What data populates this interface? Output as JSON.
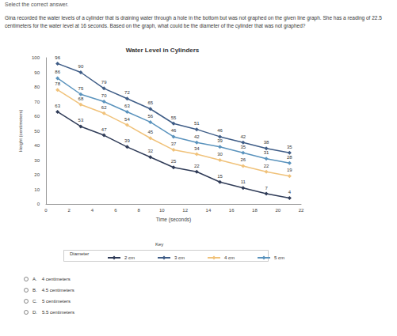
{
  "page": {
    "instruction": "Select the correct answer.",
    "question": "Gina recorded the water levels of a cylinder that is draining water through a hole in the bottom but was not graphed on the given line graph. She has a reading of 22.5 centimeters for the water level at 16 seconds. Based on the graph, what could be the diameter of the cylinder that was not graphed?",
    "options": [
      {
        "letter": "A.",
        "text": "4 centimeters"
      },
      {
        "letter": "B.",
        "text": "4.5 centimeters"
      },
      {
        "letter": "C.",
        "text": "5 centimeters"
      },
      {
        "letter": "D.",
        "text": "5.5 centimeters"
      }
    ]
  },
  "chart_data": {
    "type": "line",
    "title": "Water Level in Cylinders",
    "x_label": "Time (seconds)",
    "y_label": "Height (centimeters)",
    "legend_title": "Key",
    "legend_label": "Diameter",
    "x": [
      1,
      3,
      5,
      7,
      9,
      11,
      13,
      15,
      17,
      19,
      21
    ],
    "series": [
      {
        "name": "2 cm",
        "color": "#2f3b57",
        "values": [
          63,
          53,
          47,
          39,
          32,
          25,
          22,
          15,
          11,
          7,
          4
        ]
      },
      {
        "name": "3 cm",
        "color": "#3e5c86",
        "values": [
          96,
          90,
          79,
          72,
          65,
          55,
          51,
          46,
          42,
          38,
          35
        ]
      },
      {
        "name": "4 cm",
        "color": "#f0c27a",
        "values": [
          78,
          68,
          62,
          54,
          45,
          37,
          34,
          30,
          26,
          22,
          19
        ]
      },
      {
        "name": "5 cm",
        "color": "#5a93bd",
        "values": [
          86,
          75,
          70,
          63,
          56,
          46,
          42,
          39,
          35,
          31,
          28
        ]
      }
    ],
    "xlim": [
      0,
      22
    ],
    "xticks": [
      0,
      2,
      4,
      6,
      8,
      10,
      12,
      14,
      16,
      18,
      20,
      22
    ],
    "ylim": [
      0,
      100
    ],
    "yticks": [
      0,
      10,
      20,
      30,
      40,
      50,
      60,
      70,
      80,
      90,
      100
    ],
    "grid": false,
    "legend": "bottom",
    "data_labels": true,
    "marker": "diamond"
  }
}
